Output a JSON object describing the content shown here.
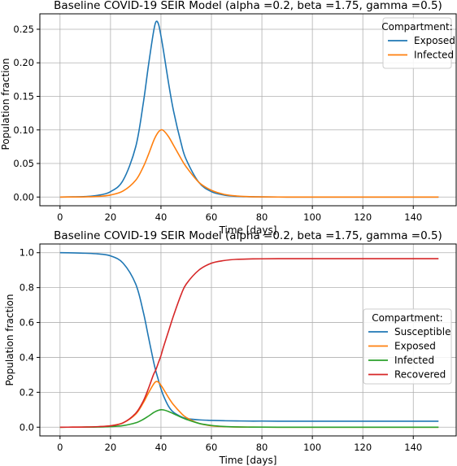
{
  "chart_data": [
    {
      "type": "line",
      "title": "Baseline COVID-19 SEIR Model (alpha =0.2, beta =1.75, gamma =0.5)",
      "xlabel": "Time [days]",
      "ylabel": "Population fraction",
      "xlim": [
        -8,
        157
      ],
      "ylim": [
        -0.013,
        0.273
      ],
      "xticks": [
        0,
        20,
        40,
        60,
        80,
        100,
        120,
        140
      ],
      "yticks": [
        0.0,
        0.05,
        0.1,
        0.15,
        0.2,
        0.25
      ],
      "ytick_labels": [
        "0.00",
        "0.05",
        "0.10",
        "0.15",
        "0.20",
        "0.25"
      ],
      "grid": true,
      "legend": {
        "title": "Compartment:",
        "position": "upper right"
      },
      "x": [
        0,
        5,
        10,
        15,
        20,
        25,
        30,
        33,
        35,
        37,
        38,
        39,
        40,
        41,
        43,
        45,
        48,
        50,
        55,
        60,
        65,
        70,
        75,
        80,
        90,
        100,
        110,
        120,
        130,
        140,
        150
      ],
      "series": [
        {
          "name": "Exposed",
          "color": "#1f77b4",
          "values": [
            0.0,
            0.0002,
            0.0007,
            0.0025,
            0.008,
            0.025,
            0.075,
            0.14,
            0.195,
            0.245,
            0.261,
            0.258,
            0.24,
            0.218,
            0.17,
            0.128,
            0.08,
            0.056,
            0.022,
            0.008,
            0.003,
            0.001,
            0.0004,
            0.0001,
            0.0,
            0.0,
            0.0,
            0.0,
            0.0,
            0.0,
            0.0
          ]
        },
        {
          "name": "Infected",
          "color": "#ff7f0e",
          "values": [
            0.0,
            0.0001,
            0.0003,
            0.0009,
            0.003,
            0.009,
            0.025,
            0.045,
            0.063,
            0.083,
            0.091,
            0.097,
            0.1,
            0.099,
            0.09,
            0.077,
            0.057,
            0.045,
            0.022,
            0.01,
            0.004,
            0.0015,
            0.0006,
            0.0002,
            0.0,
            0.0,
            0.0,
            0.0,
            0.0,
            0.0,
            0.0
          ]
        }
      ]
    },
    {
      "type": "line",
      "title": "Baseline COVID-19 SEIR Model (alpha =0.2, beta =1.75, gamma =0.5)",
      "xlabel": "Time [days]",
      "ylabel": "Population fraction",
      "xlim": [
        -8,
        157
      ],
      "ylim": [
        -0.05,
        1.05
      ],
      "xticks": [
        0,
        20,
        40,
        60,
        80,
        100,
        120,
        140
      ],
      "yticks": [
        0.0,
        0.2,
        0.4,
        0.6,
        0.8,
        1.0
      ],
      "ytick_labels": [
        "0.0",
        "0.2",
        "0.4",
        "0.6",
        "0.8",
        "1.0"
      ],
      "grid": true,
      "legend": {
        "title": "Compartment:",
        "position": "center right"
      },
      "x": [
        0,
        5,
        10,
        15,
        20,
        25,
        30,
        33,
        35,
        37,
        38,
        39,
        40,
        41,
        43,
        45,
        48,
        50,
        55,
        60,
        65,
        70,
        75,
        80,
        90,
        100,
        110,
        120,
        130,
        140,
        150
      ],
      "series": [
        {
          "name": "Susceptible",
          "color": "#1f77b4",
          "values": [
            1.0,
            0.999,
            0.997,
            0.993,
            0.982,
            0.94,
            0.82,
            0.66,
            0.52,
            0.38,
            0.32,
            0.27,
            0.22,
            0.18,
            0.12,
            0.085,
            0.06,
            0.05,
            0.042,
            0.039,
            0.037,
            0.036,
            0.035,
            0.035,
            0.034,
            0.034,
            0.034,
            0.034,
            0.034,
            0.034,
            0.034
          ]
        },
        {
          "name": "Exposed",
          "color": "#ff7f0e",
          "values": [
            0.0,
            0.0002,
            0.0007,
            0.0025,
            0.008,
            0.025,
            0.075,
            0.14,
            0.195,
            0.245,
            0.261,
            0.258,
            0.24,
            0.218,
            0.17,
            0.128,
            0.08,
            0.056,
            0.022,
            0.008,
            0.003,
            0.001,
            0.0004,
            0.0001,
            0.0,
            0.0,
            0.0,
            0.0,
            0.0,
            0.0,
            0.0
          ]
        },
        {
          "name": "Infected",
          "color": "#2ca02c",
          "values": [
            0.0,
            0.0001,
            0.0003,
            0.0009,
            0.003,
            0.009,
            0.025,
            0.045,
            0.063,
            0.083,
            0.091,
            0.097,
            0.1,
            0.099,
            0.09,
            0.077,
            0.057,
            0.045,
            0.022,
            0.01,
            0.004,
            0.0015,
            0.0006,
            0.0002,
            0.0,
            0.0,
            0.0,
            0.0,
            0.0,
            0.0,
            0.0
          ]
        },
        {
          "name": "Recovered",
          "color": "#d62728",
          "values": [
            0.0,
            0.0002,
            0.0008,
            0.003,
            0.008,
            0.025,
            0.08,
            0.15,
            0.22,
            0.3,
            0.33,
            0.37,
            0.41,
            0.46,
            0.55,
            0.64,
            0.76,
            0.82,
            0.9,
            0.94,
            0.955,
            0.962,
            0.964,
            0.965,
            0.966,
            0.966,
            0.966,
            0.966,
            0.966,
            0.966,
            0.966
          ]
        }
      ]
    }
  ]
}
